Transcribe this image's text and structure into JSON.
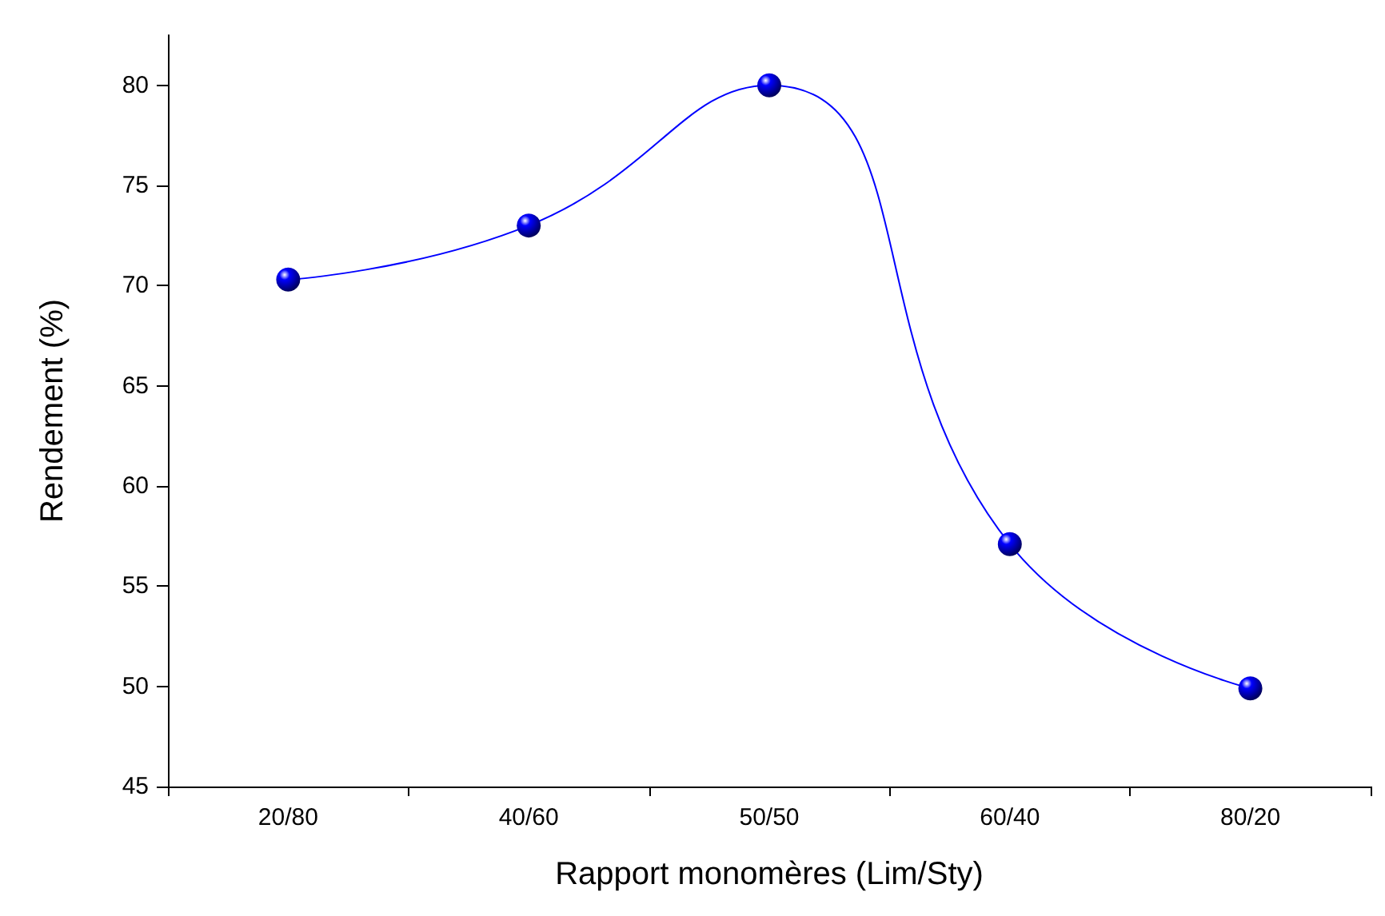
{
  "chart_data": {
    "type": "line",
    "xlabel": "Rapport monomères (Lim/Sty)",
    "ylabel": "Rendement (%)",
    "categories": [
      "20/80",
      "40/60",
      "50/50",
      "60/40",
      "80/20"
    ],
    "series": [
      {
        "color": "#0000ff",
        "values": [
          70.3,
          73.0,
          80.0,
          57.1,
          49.9
        ]
      }
    ],
    "ylim": [
      45,
      82.5
    ],
    "yticks": [
      45,
      50,
      55,
      60,
      65,
      70,
      75,
      80
    ],
    "grid": false,
    "marker": "circle",
    "line_style": "solid"
  }
}
